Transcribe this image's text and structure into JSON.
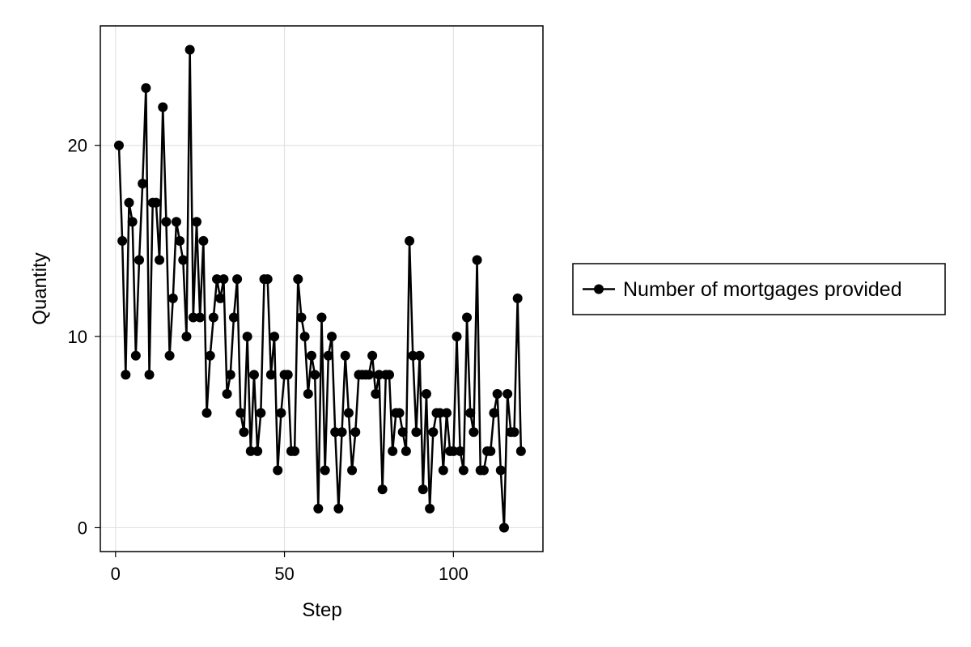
{
  "chart_data": {
    "type": "line",
    "xlabel": "Step",
    "ylabel": "Quantity",
    "xlim": [
      -4.5,
      126.5
    ],
    "ylim": [
      -1.25,
      26.25
    ],
    "xticks": [
      0,
      50,
      100
    ],
    "yticks": [
      0,
      10,
      20
    ],
    "grid": true,
    "legend_position": "right",
    "series": [
      {
        "name": "Number of mortgages provided",
        "color": "#000000",
        "x": [
          1,
          2,
          3,
          4,
          5,
          6,
          7,
          8,
          9,
          10,
          11,
          12,
          13,
          14,
          15,
          16,
          17,
          18,
          19,
          20,
          21,
          22,
          23,
          24,
          25,
          26,
          27,
          28,
          29,
          30,
          31,
          32,
          33,
          34,
          35,
          36,
          37,
          38,
          39,
          40,
          41,
          42,
          43,
          44,
          45,
          46,
          47,
          48,
          49,
          50,
          51,
          52,
          53,
          54,
          55,
          56,
          57,
          58,
          59,
          60,
          61,
          62,
          63,
          64,
          65,
          66,
          67,
          68,
          69,
          70,
          71,
          72,
          73,
          74,
          75,
          76,
          77,
          78,
          79,
          80,
          81,
          82,
          83,
          84,
          85,
          86,
          87,
          88,
          89,
          90,
          91,
          92,
          93,
          94,
          95,
          96,
          97,
          98,
          99,
          100,
          101,
          102,
          103,
          104,
          105,
          106,
          107,
          108,
          109,
          110,
          111,
          112,
          113,
          114,
          115,
          116,
          117,
          118,
          119,
          120
        ],
        "y": [
          20,
          15,
          8,
          17,
          16,
          9,
          14,
          18,
          23,
          8,
          17,
          17,
          14,
          22,
          16,
          9,
          12,
          16,
          15,
          14,
          10,
          25,
          11,
          16,
          11,
          15,
          6,
          9,
          11,
          13,
          12,
          13,
          7,
          8,
          11,
          13,
          6,
          5,
          10,
          4,
          8,
          4,
          6,
          13,
          13,
          8,
          10,
          3,
          6,
          8,
          8,
          4,
          4,
          13,
          11,
          10,
          7,
          9,
          8,
          1,
          11,
          3,
          9,
          10,
          5,
          1,
          5,
          9,
          6,
          3,
          5,
          8,
          8,
          8,
          8,
          9,
          7,
          8,
          2,
          8,
          8,
          4,
          6,
          6,
          5,
          4,
          15,
          9,
          5,
          9,
          2,
          7,
          1,
          5,
          6,
          6,
          3,
          6,
          4,
          4,
          10,
          4,
          3,
          11,
          6,
          5,
          14,
          3,
          3,
          4,
          4,
          6,
          7,
          3,
          0,
          7,
          5,
          5,
          12,
          4
        ]
      }
    ]
  }
}
